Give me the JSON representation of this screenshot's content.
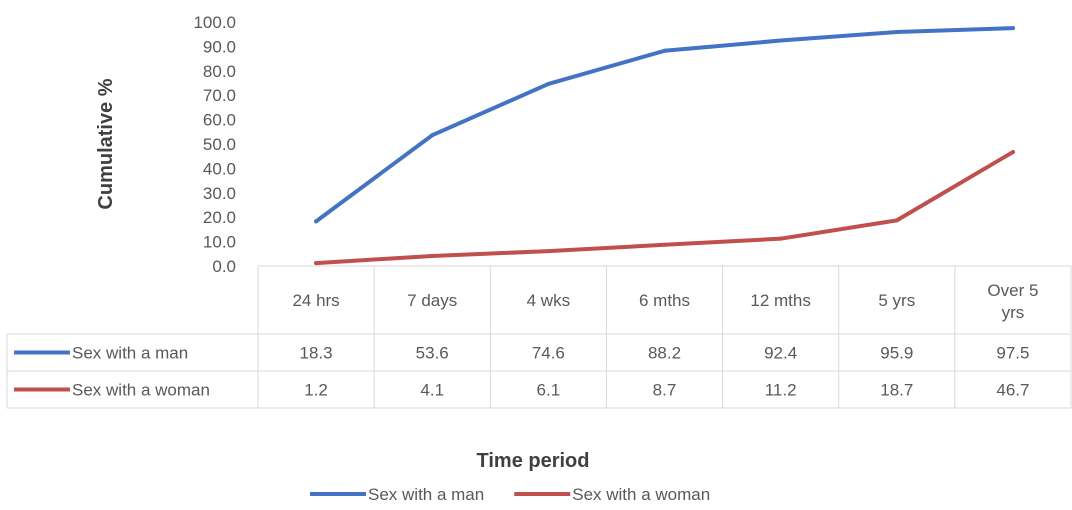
{
  "chart_data": {
    "type": "line",
    "categories": [
      "24 hrs",
      "7 days",
      "4 wks",
      "6 mths",
      "12 mths",
      "5 yrs",
      "Over 5 yrs"
    ],
    "series": [
      {
        "name": "Sex with a man",
        "color": "#4472C4",
        "values": [
          18.3,
          53.6,
          74.6,
          88.2,
          92.4,
          95.9,
          97.5
        ]
      },
      {
        "name": "Sex with a woman",
        "color": "#C0504D",
        "values": [
          1.2,
          4.1,
          6.1,
          8.7,
          11.2,
          18.7,
          46.7
        ]
      }
    ],
    "xlabel": "Time period",
    "ylabel": "Cumulative %",
    "ylim": [
      0,
      100
    ],
    "yticks": [
      "0.0",
      "10.0",
      "20.0",
      "30.0",
      "40.0",
      "50.0",
      "60.0",
      "70.0",
      "80.0",
      "90.0",
      "100.0"
    ],
    "data_table": true,
    "table_cells": [
      [
        "18.3",
        "53.6",
        "74.6",
        "88.2",
        "92.4",
        "95.9",
        "97.5"
      ],
      [
        "1.2",
        "4.1",
        "6.1",
        "8.7",
        "11.2",
        "18.7",
        "46.7"
      ]
    ],
    "legend": "bottom",
    "grid": false
  }
}
